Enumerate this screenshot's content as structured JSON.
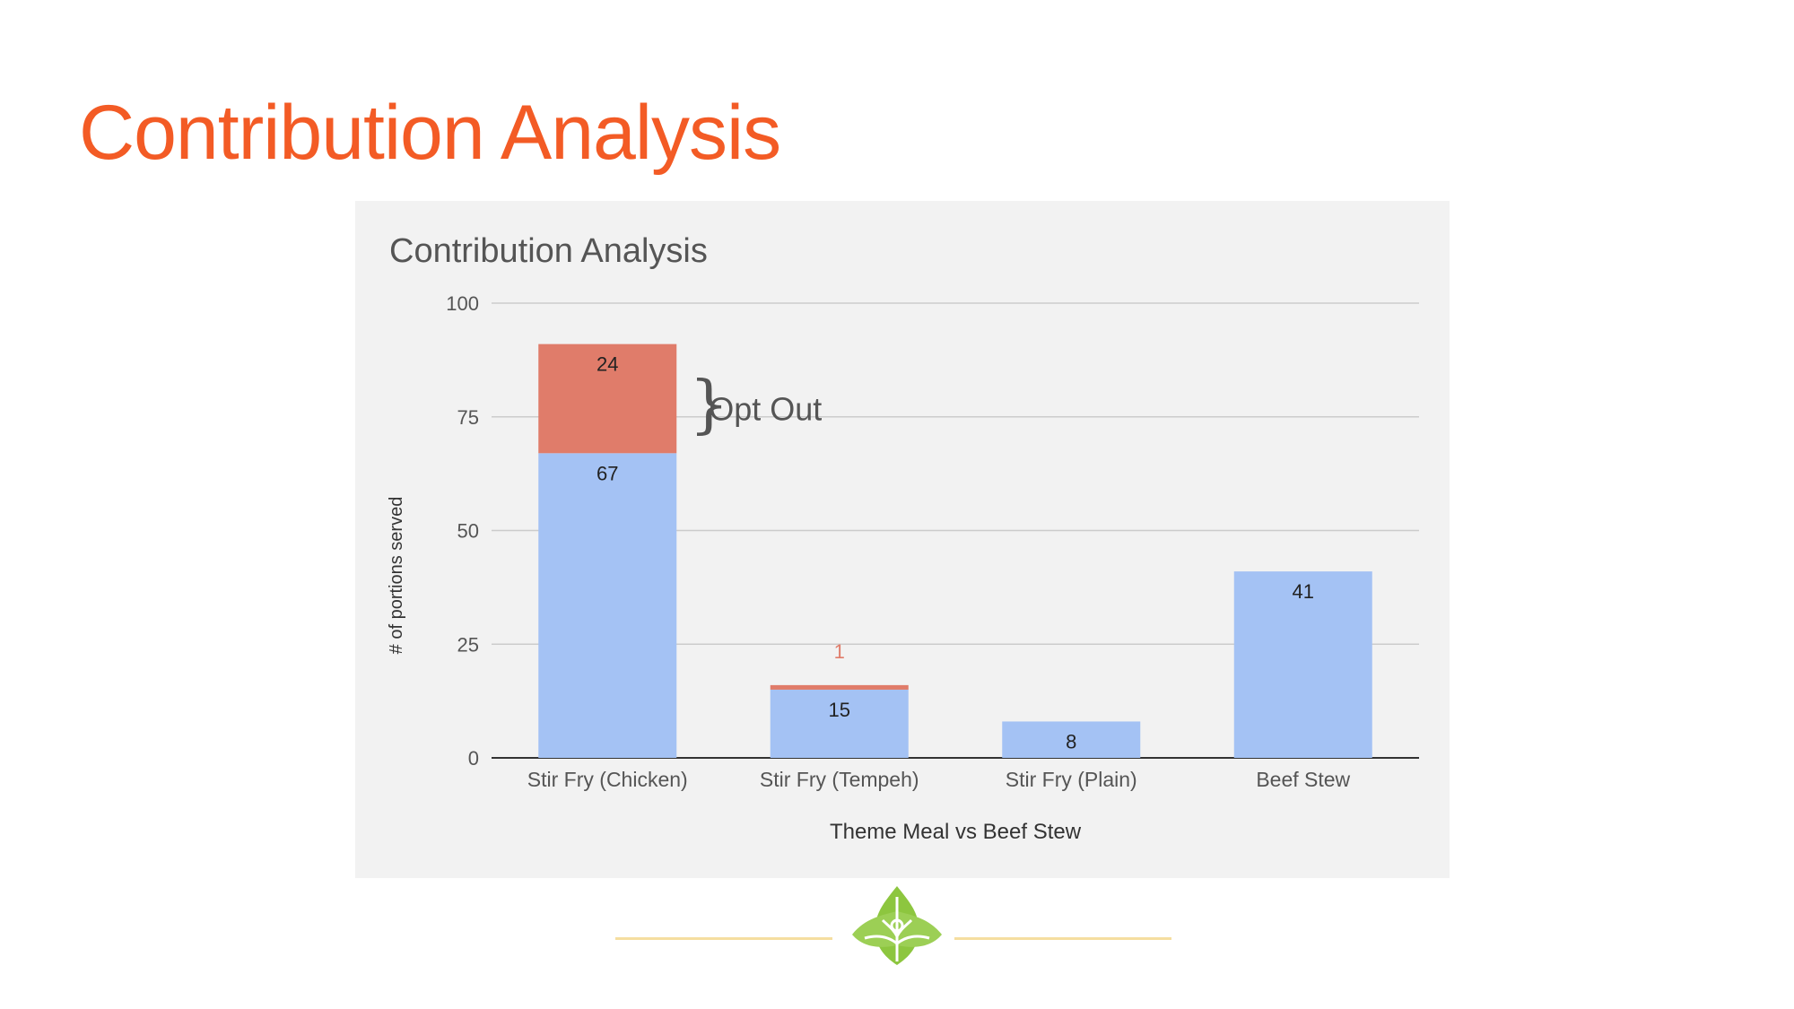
{
  "slide": {
    "title": "Contribution Analysis"
  },
  "annotation": {
    "brace": "}",
    "label": "Opt Out"
  },
  "chart_data": {
    "type": "bar",
    "stacked": true,
    "title": "Contribution Analysis",
    "xlabel": "Theme Meal vs Beef Stew",
    "ylabel": "# of portions served",
    "ylim": [
      0,
      100
    ],
    "yticks": [
      "0",
      "25",
      "50",
      "75",
      "100"
    ],
    "grid": true,
    "categories": [
      "Stir Fry (Chicken)",
      "Stir Fry (Tempeh)",
      "Stir Fry (Plain)",
      "Beef Stew"
    ],
    "series": [
      {
        "values": [
          67,
          15,
          8,
          41
        ],
        "color": "#a4c2f4"
      },
      {
        "values": [
          24,
          1,
          0,
          0
        ],
        "color": "#e07c6a"
      }
    ]
  },
  "colors": {
    "title": "#f35b25",
    "panel_bg": "#f2f2f2",
    "footer_line": "#f5dea0",
    "logo": "#8dc63f"
  },
  "footer": {
    "logo_icon": "leaf-logo-icon"
  }
}
